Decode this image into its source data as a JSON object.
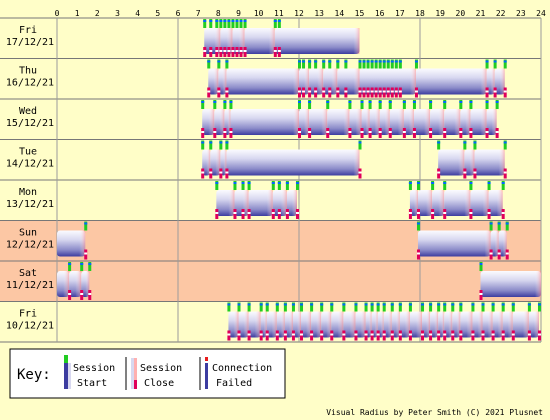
{
  "chart_data": {
    "type": "timeline",
    "x_unit": "hour of day",
    "xlim": [
      0,
      24
    ],
    "x_ticks": [
      "0",
      "1",
      "2",
      "3",
      "4",
      "5",
      "6",
      "7",
      "8",
      "9",
      "10",
      "11",
      "12",
      "13",
      "14",
      "15",
      "16",
      "17",
      "18",
      "19",
      "20",
      "21",
      "22",
      "23",
      "24"
    ],
    "grid_hours": [
      0,
      6,
      12,
      18,
      24
    ],
    "rows": [
      {
        "day": "Fri",
        "date": "17/12/21",
        "weekend": false,
        "sessions": [
          [
            7.3,
            8.1
          ],
          [
            8.1,
            8.7
          ],
          [
            8.7,
            9.3
          ],
          [
            9.3,
            10.8
          ],
          [
            10.8,
            15.0
          ]
        ],
        "events": [
          7.3,
          7.6,
          7.9,
          8.1,
          8.3,
          8.5,
          8.7,
          8.9,
          9.1,
          9.3,
          10.8,
          11.0
        ]
      },
      {
        "day": "Thu",
        "date": "16/12/21",
        "weekend": false,
        "sessions": [
          [
            7.5,
            8.0
          ],
          [
            8.0,
            8.4
          ],
          [
            8.4,
            12.0
          ],
          [
            12.0,
            12.5
          ],
          [
            12.5,
            13.2
          ],
          [
            13.2,
            13.9
          ],
          [
            13.9,
            15.0
          ],
          [
            15.0,
            17.8
          ],
          [
            17.8,
            21.3
          ],
          [
            21.3,
            21.7
          ],
          [
            21.7,
            22.2
          ]
        ],
        "events": [
          7.5,
          8.0,
          8.4,
          12.0,
          12.2,
          12.5,
          12.8,
          13.2,
          13.5,
          13.9,
          14.3,
          15.0,
          15.2,
          15.4,
          15.6,
          15.8,
          16.0,
          16.2,
          16.4,
          16.6,
          16.8,
          17.0,
          17.8,
          21.3,
          21.7,
          22.2
        ]
      },
      {
        "day": "Wed",
        "date": "15/12/21",
        "weekend": false,
        "sessions": [
          [
            7.2,
            7.8
          ],
          [
            7.8,
            8.3
          ],
          [
            8.3,
            8.6
          ],
          [
            8.6,
            12.0
          ],
          [
            12.0,
            12.5
          ],
          [
            12.5,
            13.4
          ],
          [
            13.4,
            14.5
          ],
          [
            14.5,
            15.1
          ],
          [
            15.1,
            15.5
          ],
          [
            15.5,
            16.0
          ],
          [
            16.0,
            16.5
          ],
          [
            16.5,
            17.2
          ],
          [
            17.2,
            17.7
          ],
          [
            17.7,
            18.5
          ],
          [
            18.5,
            19.2
          ],
          [
            19.2,
            20.0
          ],
          [
            20.0,
            20.5
          ],
          [
            20.5,
            21.3
          ],
          [
            21.3,
            21.8
          ]
        ],
        "events": [
          7.2,
          7.8,
          8.3,
          8.6,
          12.0,
          12.5,
          13.4,
          14.5,
          15.1,
          15.5,
          16.0,
          16.5,
          17.2,
          17.7,
          18.5,
          19.2,
          20.0,
          20.5,
          21.3,
          21.8
        ]
      },
      {
        "day": "Tue",
        "date": "14/12/21",
        "weekend": false,
        "sessions": [
          [
            7.2,
            7.6
          ],
          [
            7.6,
            8.1
          ],
          [
            8.1,
            8.4
          ],
          [
            8.4,
            15.0
          ],
          [
            18.9,
            20.2
          ],
          [
            20.2,
            20.7
          ],
          [
            20.7,
            22.2
          ]
        ],
        "events": [
          7.2,
          7.6,
          8.1,
          8.4,
          15.0,
          18.9,
          20.2,
          20.7,
          22.2
        ]
      },
      {
        "day": "Mon",
        "date": "13/12/21",
        "weekend": false,
        "sessions": [
          [
            7.9,
            8.8
          ],
          [
            8.8,
            9.5
          ],
          [
            9.5,
            10.7
          ],
          [
            10.7,
            11.4
          ],
          [
            11.4,
            11.9
          ],
          [
            17.5,
            17.9
          ],
          [
            17.9,
            18.6
          ],
          [
            18.6,
            19.2
          ],
          [
            19.2,
            20.5
          ],
          [
            20.5,
            21.4
          ],
          [
            21.4,
            22.1
          ]
        ],
        "events": [
          7.9,
          8.8,
          9.2,
          9.5,
          10.7,
          11.0,
          11.4,
          11.9,
          17.5,
          17.9,
          18.6,
          19.2,
          20.5,
          21.4,
          22.1
        ]
      },
      {
        "day": "Sun",
        "date": "12/12/21",
        "weekend": true,
        "sessions": [
          [
            0.0,
            1.4
          ],
          [
            17.9,
            21.5
          ],
          [
            21.5,
            21.9
          ],
          [
            21.9,
            22.3
          ]
        ],
        "events": [
          1.4,
          17.9,
          21.5,
          21.9,
          22.3
        ]
      },
      {
        "day": "Sat",
        "date": "11/12/21",
        "weekend": true,
        "sessions": [
          [
            0.0,
            0.6
          ],
          [
            0.6,
            1.2
          ],
          [
            1.2,
            1.6
          ],
          [
            21.0,
            24.0
          ]
        ],
        "events": [
          0.6,
          1.2,
          1.6,
          21.0
        ]
      },
      {
        "day": "Fri",
        "date": "10/12/21",
        "weekend": false,
        "sessions": [
          [
            8.5,
            9.0
          ],
          [
            9.0,
            9.5
          ],
          [
            9.5,
            10.1
          ],
          [
            10.1,
            10.4
          ],
          [
            10.4,
            10.9
          ],
          [
            10.9,
            11.3
          ],
          [
            11.3,
            11.7
          ],
          [
            11.7,
            12.1
          ],
          [
            12.1,
            12.6
          ],
          [
            12.6,
            13.1
          ],
          [
            13.1,
            13.6
          ],
          [
            13.6,
            14.2
          ],
          [
            14.2,
            14.8
          ],
          [
            14.8,
            15.3
          ],
          [
            15.3,
            15.6
          ],
          [
            15.6,
            15.9
          ],
          [
            15.9,
            16.2
          ],
          [
            16.2,
            16.6
          ],
          [
            16.6,
            17.0
          ],
          [
            17.0,
            17.5
          ],
          [
            17.5,
            18.1
          ],
          [
            18.1,
            18.5
          ],
          [
            18.5,
            18.9
          ],
          [
            18.9,
            19.2
          ],
          [
            19.2,
            19.6
          ],
          [
            19.6,
            20.0
          ],
          [
            20.0,
            20.6
          ],
          [
            20.6,
            21.1
          ],
          [
            21.1,
            21.6
          ],
          [
            21.6,
            22.1
          ],
          [
            22.1,
            22.6
          ],
          [
            22.6,
            23.4
          ],
          [
            23.4,
            23.9
          ]
        ],
        "events": [
          8.5,
          9.0,
          9.5,
          10.1,
          10.4,
          10.9,
          11.3,
          11.7,
          12.1,
          12.6,
          13.1,
          13.6,
          14.2,
          14.8,
          15.3,
          15.6,
          15.9,
          16.2,
          16.6,
          17.0,
          17.5,
          18.1,
          18.5,
          18.9,
          19.2,
          19.6,
          20.0,
          20.6,
          21.1,
          21.6,
          22.1,
          22.6,
          23.4,
          23.9
        ]
      }
    ],
    "colors": {
      "background": "#fffec8",
      "weekend_background": "#fcc7a4",
      "grid": "#9b9b9b",
      "session_light": "#f4f4ff",
      "session_dark": "#4444aa",
      "start_marker": "#22cc22",
      "close_marker": "#e0005a",
      "failed_marker": "#e81d1d"
    }
  },
  "key": {
    "title": "Key:",
    "session_start": [
      "Session",
      "Start"
    ],
    "session_close": [
      "Session",
      "Close"
    ],
    "connection_failed": [
      "Connection",
      "Failed"
    ]
  },
  "credit": "Visual Radius by Peter Smith (C) 2021 Plusnet"
}
